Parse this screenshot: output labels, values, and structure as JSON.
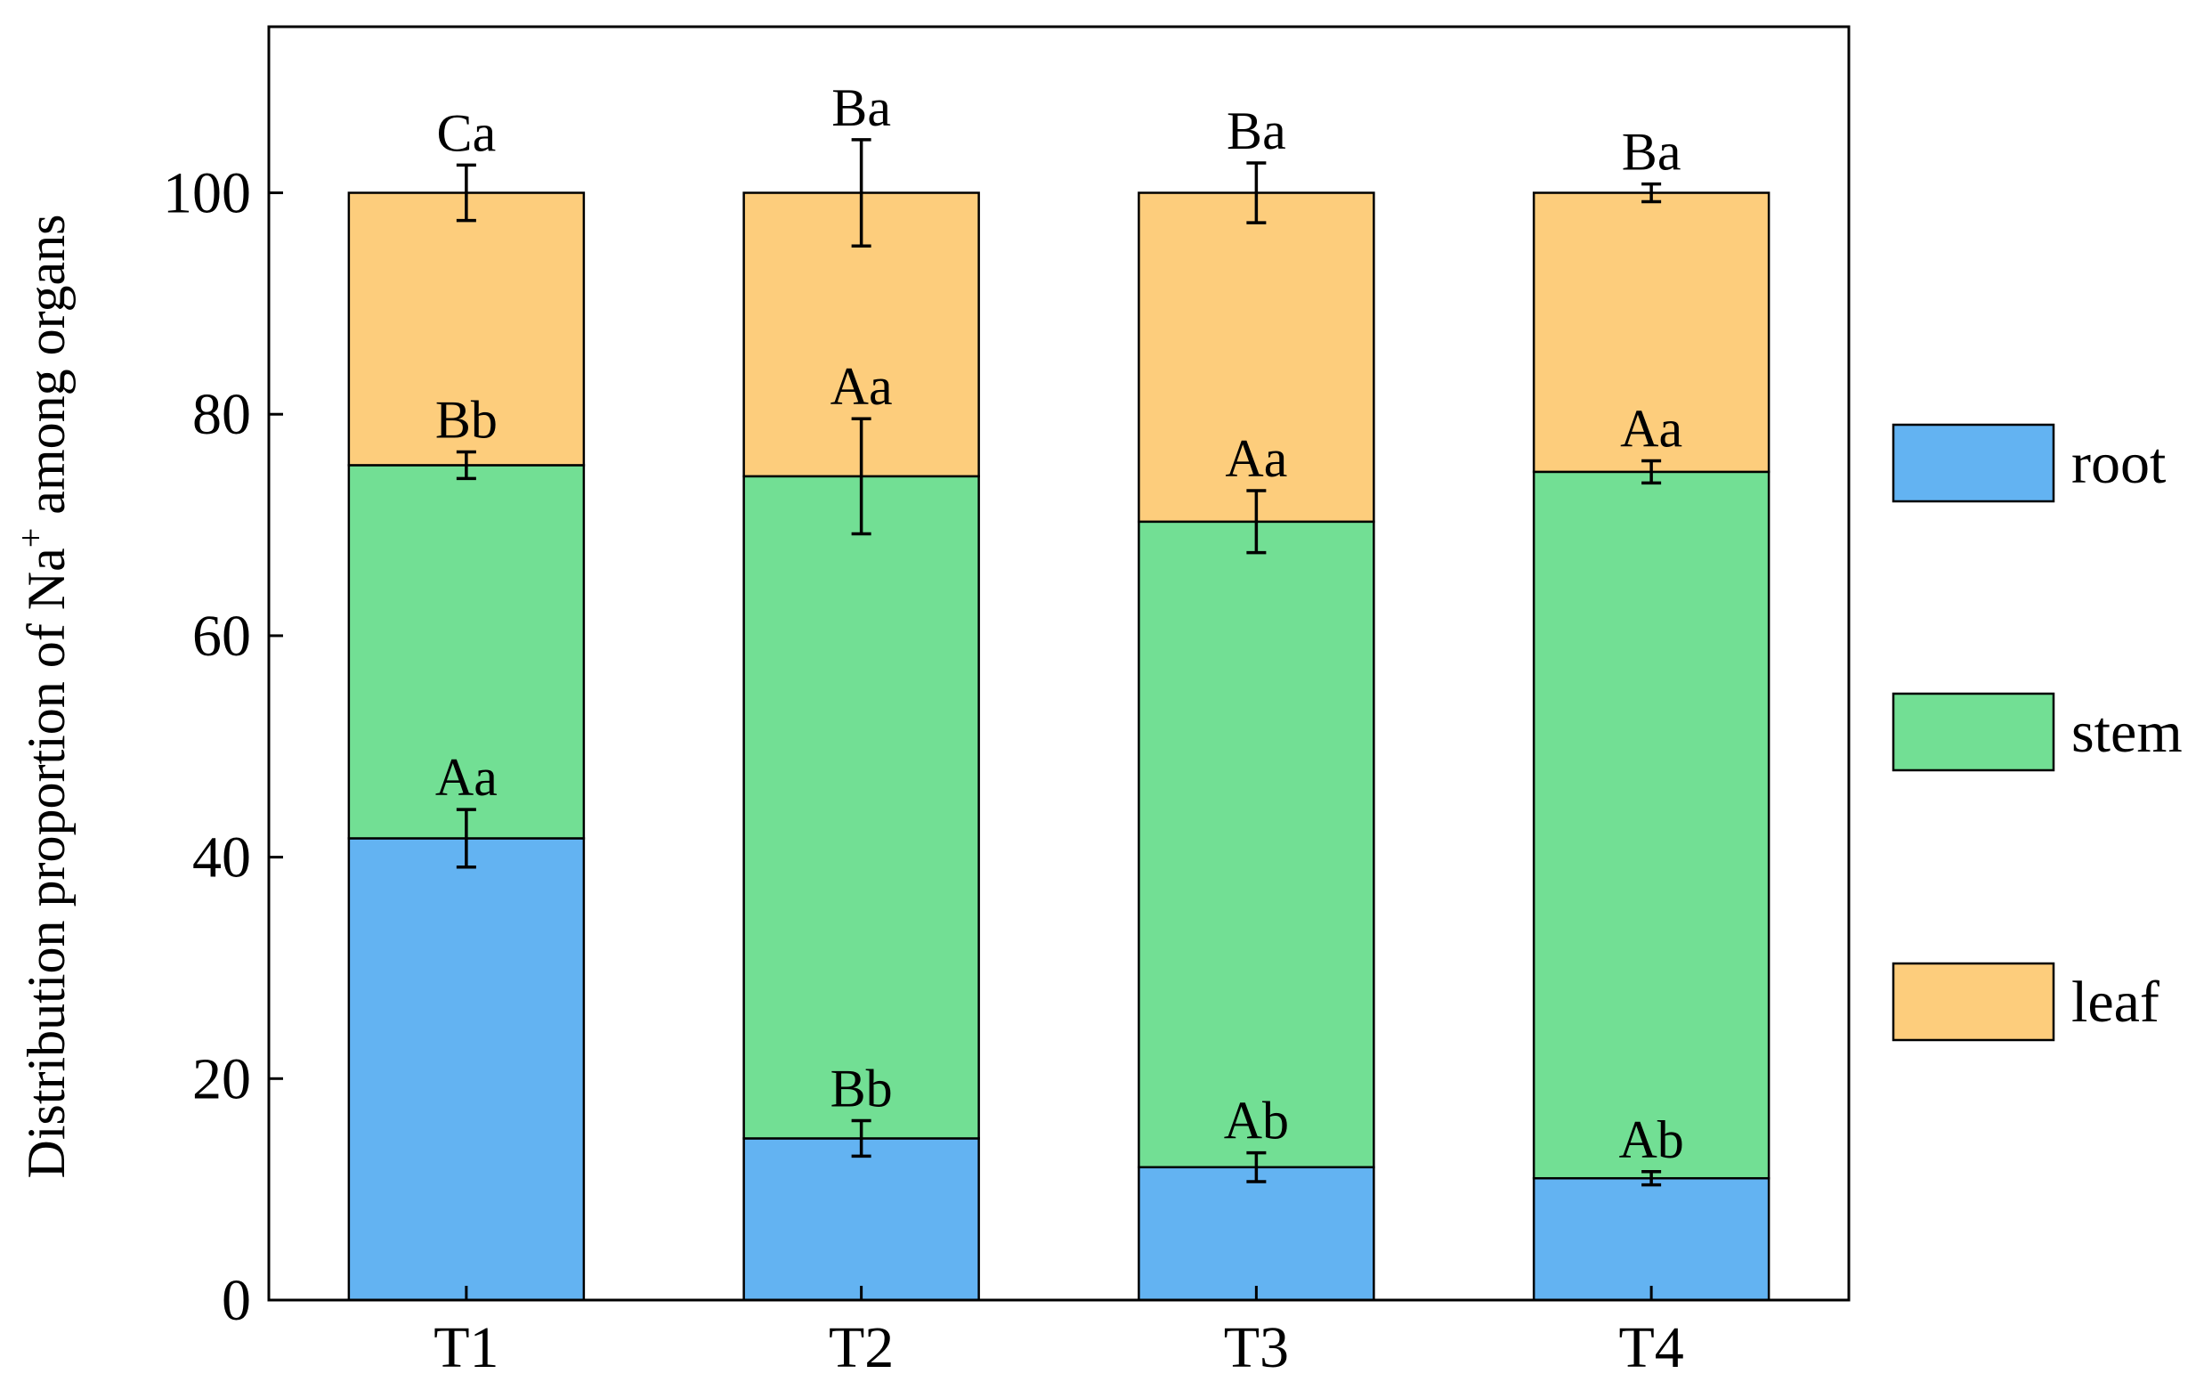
{
  "chart_data": {
    "type": "bar",
    "stacked": true,
    "categories": [
      "T1",
      "T2",
      "T3",
      "T4"
    ],
    "ylabel_main": "Distribution proportion of Na",
    "ylabel_sup": "+",
    "ylabel_tail": " among organs",
    "xlabel": "",
    "ylim": [
      0,
      115
    ],
    "yticks": [
      0,
      20,
      40,
      60,
      80,
      100
    ],
    "grid": false,
    "legend_position": "right",
    "series": [
      {
        "name": "root",
        "color": "#63b3f2",
        "values": [
          41.7,
          14.6,
          12.0,
          11.0
        ],
        "errors": [
          2.6,
          1.6,
          1.3,
          0.6
        ],
        "labels": [
          "Aa",
          "Bb",
          "Ab",
          "Ab"
        ]
      },
      {
        "name": "stem",
        "color": "#72df94",
        "values": [
          33.7,
          59.8,
          58.3,
          63.8
        ],
        "errors": [
          1.2,
          5.2,
          2.8,
          1.0
        ],
        "labels": [
          "Bb",
          "Aa",
          "Aa",
          "Aa"
        ]
      },
      {
        "name": "leaf",
        "color": "#fdcd7c",
        "values": [
          24.6,
          25.6,
          29.7,
          25.2
        ],
        "errors": [
          2.5,
          4.8,
          2.7,
          0.8
        ],
        "labels": [
          "Ca",
          "Ba",
          "Ba",
          "Ba"
        ]
      }
    ]
  }
}
